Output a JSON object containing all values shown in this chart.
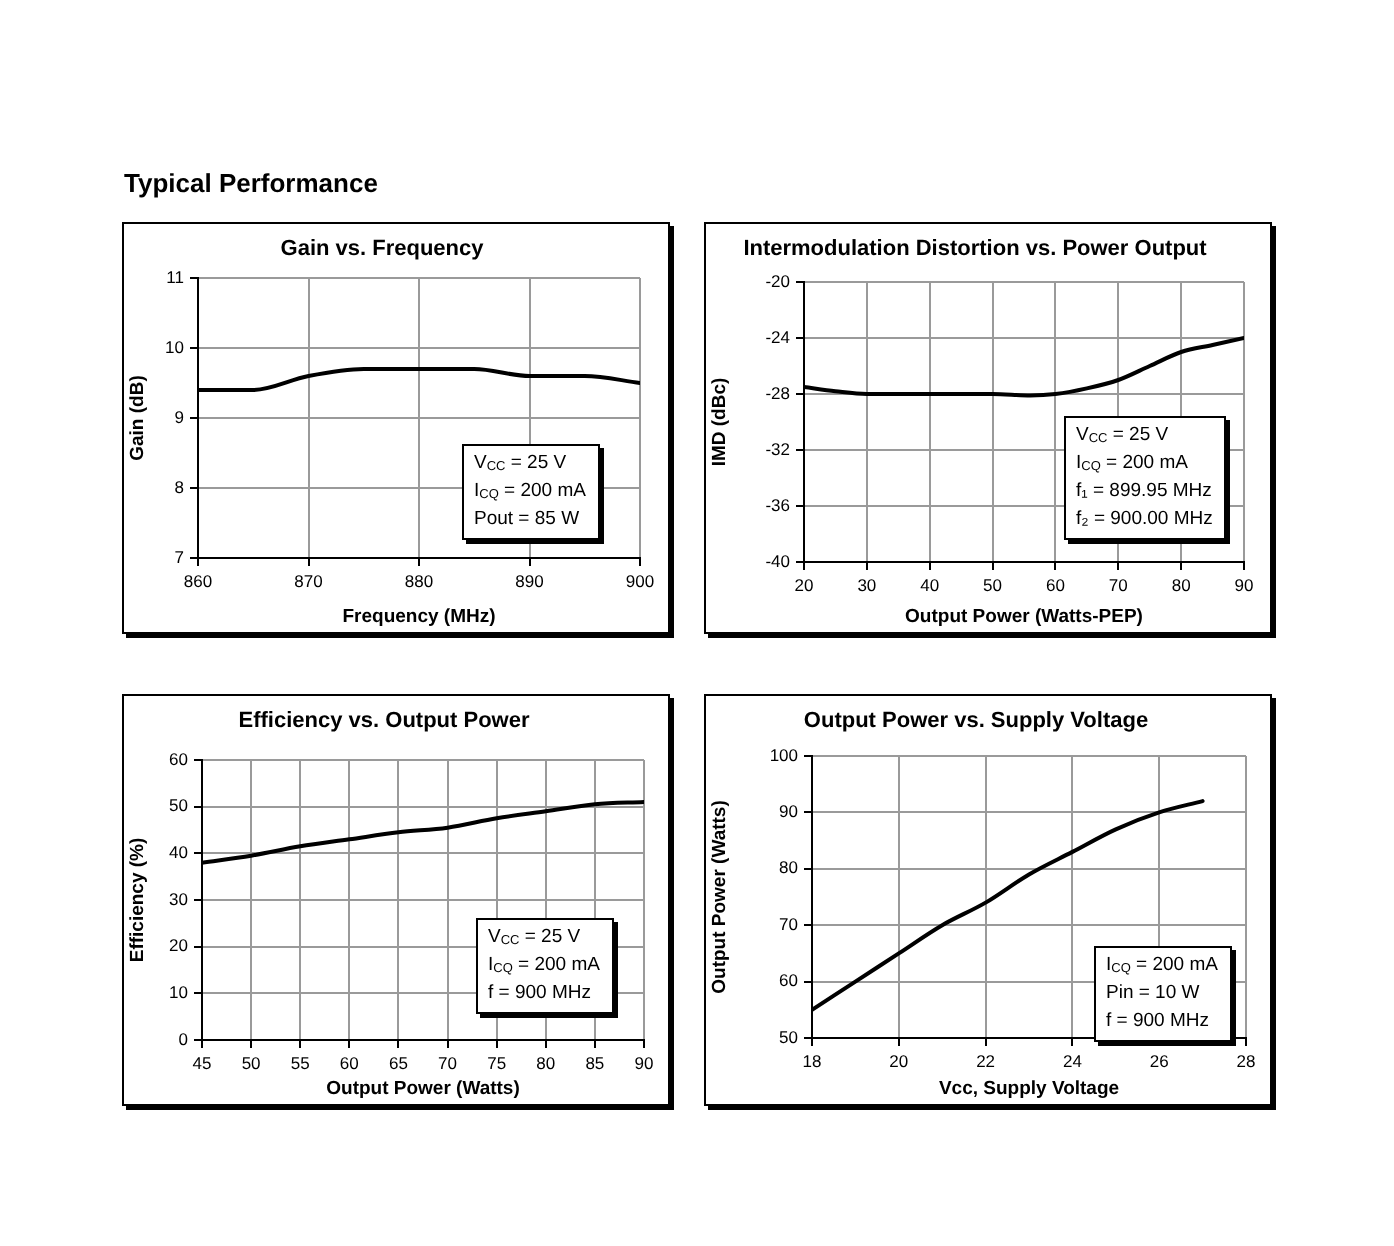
{
  "chart_data": [
    {
      "type": "line",
      "title": "Gain vs. Frequency",
      "xlabel": "Frequency (MHz)",
      "ylabel": "Gain (dB)",
      "x": [
        860,
        865,
        870,
        875,
        880,
        885,
        890,
        895,
        900
      ],
      "series": [
        {
          "color": "#000000",
          "values": [
            9.4,
            9.4,
            9.6,
            9.7,
            9.7,
            9.7,
            9.6,
            9.6,
            9.5
          ]
        }
      ],
      "xlim": [
        860,
        900
      ],
      "xticks": [
        860,
        870,
        880,
        890,
        900
      ],
      "ylim": [
        7,
        11
      ],
      "yticks": [
        7,
        8,
        9,
        10,
        11
      ],
      "grid": true,
      "annotations": [
        "Typical Performance",
        "V$_{CC}$ = 25 V",
        "I$_{CQ}$ = 200 mA",
        "Pout = 85 W"
      ]
    },
    {
      "type": "line",
      "title": "Intermodulation Distortion vs. Power Output",
      "xlabel": "Output Power (Watts-PEP)",
      "ylabel": "IMD (dBc)",
      "x": [
        20,
        25,
        30,
        40,
        50,
        56,
        60,
        65,
        70,
        75,
        80,
        85,
        90
      ],
      "series": [
        {
          "color": "#000000",
          "values": [
            -27.5,
            -27.8,
            -28,
            -28,
            -28,
            -28.1,
            -28,
            -27.6,
            -27,
            -26,
            -25,
            -24.5,
            -24
          ]
        }
      ],
      "xlim": [
        20,
        90
      ],
      "xticks": [
        20,
        30,
        40,
        50,
        60,
        70,
        80,
        90
      ],
      "ylim": [
        -40,
        -20
      ],
      "yticks": [
        -40,
        -36,
        -32,
        -28,
        -24,
        -20
      ],
      "grid": true,
      "annotations": [
        "V$_{CC}$ = 25 V",
        "I$_{CQ}$ = 200 mA",
        "f₁ = 899.95 MHz",
        "f₂ = 900.00 MHz"
      ]
    },
    {
      "type": "line",
      "title": "Efficiency vs. Output Power",
      "xlabel": "Output Power (Watts)",
      "ylabel": "Efficiency (%)",
      "x": [
        45,
        50,
        55,
        60,
        65,
        70,
        75,
        80,
        85,
        90
      ],
      "series": [
        {
          "color": "#000000",
          "values": [
            38,
            39.5,
            41.5,
            43,
            44.5,
            45.5,
            47.5,
            49,
            50.5,
            51
          ]
        }
      ],
      "xlim": [
        45,
        90
      ],
      "xticks": [
        45,
        50,
        55,
        60,
        65,
        70,
        75,
        80,
        85,
        90
      ],
      "ylim": [
        0,
        60
      ],
      "yticks": [
        0,
        10,
        20,
        30,
        40,
        50,
        60
      ],
      "grid": true,
      "annotations": [
        "V$_{CC}$ = 25 V",
        "I$_{CQ}$ = 200 mA",
        "f = 900 MHz"
      ]
    },
    {
      "type": "line",
      "title": "Output Power vs. Supply Voltage",
      "xlabel": "Vcc, Supply Voltage",
      "ylabel": "Output Power (Watts)",
      "x": [
        18,
        19,
        20,
        21,
        22,
        23,
        24,
        25,
        26,
        27
      ],
      "series": [
        {
          "color": "#000000",
          "values": [
            55,
            60,
            65,
            70,
            74,
            79,
            83,
            87,
            90,
            92
          ]
        }
      ],
      "xlim": [
        18,
        28
      ],
      "xticks": [
        18,
        20,
        22,
        24,
        26,
        28
      ],
      "ylim": [
        50,
        100
      ],
      "yticks": [
        50,
        60,
        70,
        80,
        90,
        100
      ],
      "grid": true,
      "annotations": [
        "I$_{CQ}$ = 200 mA",
        "Pin = 10 W",
        "f = 900 MHz"
      ]
    }
  ]
}
